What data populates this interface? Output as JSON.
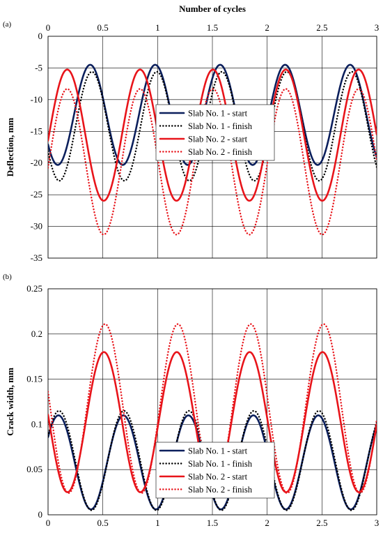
{
  "figure": {
    "top_axis_title": "Number of cycles"
  },
  "chart_data": [
    {
      "type": "line",
      "panel_label": "(a)",
      "ylabel": "Deflection, mm",
      "xlabel": "Number of cycles",
      "x_axis_position": "top",
      "xlim": [
        0,
        3
      ],
      "ylim": [
        -35,
        0
      ],
      "x_ticks": [
        "0",
        "0.5",
        "1",
        "1.5",
        "2",
        "2.5",
        "3"
      ],
      "y_ticks": [
        "0",
        "-5",
        "-10",
        "-15",
        "-20",
        "-25",
        "-30",
        "-35"
      ],
      "grid": true,
      "legend_position": "center-right",
      "series": [
        {
          "name": "Slab No. 1 - start",
          "style": "solid",
          "color": "#0b1f5c",
          "mean": -12.4,
          "amplitude": 7.9,
          "period": 0.593,
          "peak_x": 0.385
        },
        {
          "name": "Slab No. 1 - finish",
          "style": "dotted",
          "color": "#000000",
          "mean": -14.2,
          "amplitude": 8.6,
          "period": 0.593,
          "peak_x": 0.4
        },
        {
          "name": "Slab No. 2 - start",
          "style": "solid",
          "color": "#e8141a",
          "mean": -15.6,
          "amplitude": 10.35,
          "period": 0.665,
          "peak_x": 0.175
        },
        {
          "name": "Slab No. 2 - finish",
          "style": "dotted",
          "color": "#e8141a",
          "mean": -19.8,
          "amplitude": 11.5,
          "period": 0.665,
          "peak_x": 0.175
        }
      ]
    },
    {
      "type": "line",
      "panel_label": "(b)",
      "ylabel": "Crack width, mm",
      "xlabel": "",
      "x_axis_position": "bottom",
      "xlim": [
        0,
        3
      ],
      "ylim": [
        0,
        0.25
      ],
      "x_ticks": [
        "0",
        "0.5",
        "1",
        "1.5",
        "2",
        "2.5",
        "3"
      ],
      "y_ticks": [
        "0",
        "0.05",
        "0.1",
        "0.15",
        "0.2",
        "0.25"
      ],
      "grid": true,
      "legend_position": "bottom-center",
      "series": [
        {
          "name": "Slab No. 1 - start",
          "style": "solid",
          "color": "#0b1f5c",
          "mean": 0.058,
          "amplitude": 0.052,
          "period": 0.593,
          "peak_x": 0.095
        },
        {
          "name": "Slab No. 1 - finish",
          "style": "dotted",
          "color": "#000000",
          "mean": 0.06,
          "amplitude": 0.055,
          "period": 0.593,
          "peak_x": 0.1
        },
        {
          "name": "Slab No. 2 - start",
          "style": "solid",
          "color": "#e8141a",
          "mean": 0.1025,
          "amplitude": 0.0775,
          "period": 0.665,
          "peak_x": 0.51
        },
        {
          "name": "Slab No. 2 - finish",
          "style": "dotted",
          "color": "#e8141a",
          "mean": 0.1175,
          "amplitude": 0.0935,
          "period": 0.665,
          "peak_x": 0.52
        }
      ]
    }
  ]
}
